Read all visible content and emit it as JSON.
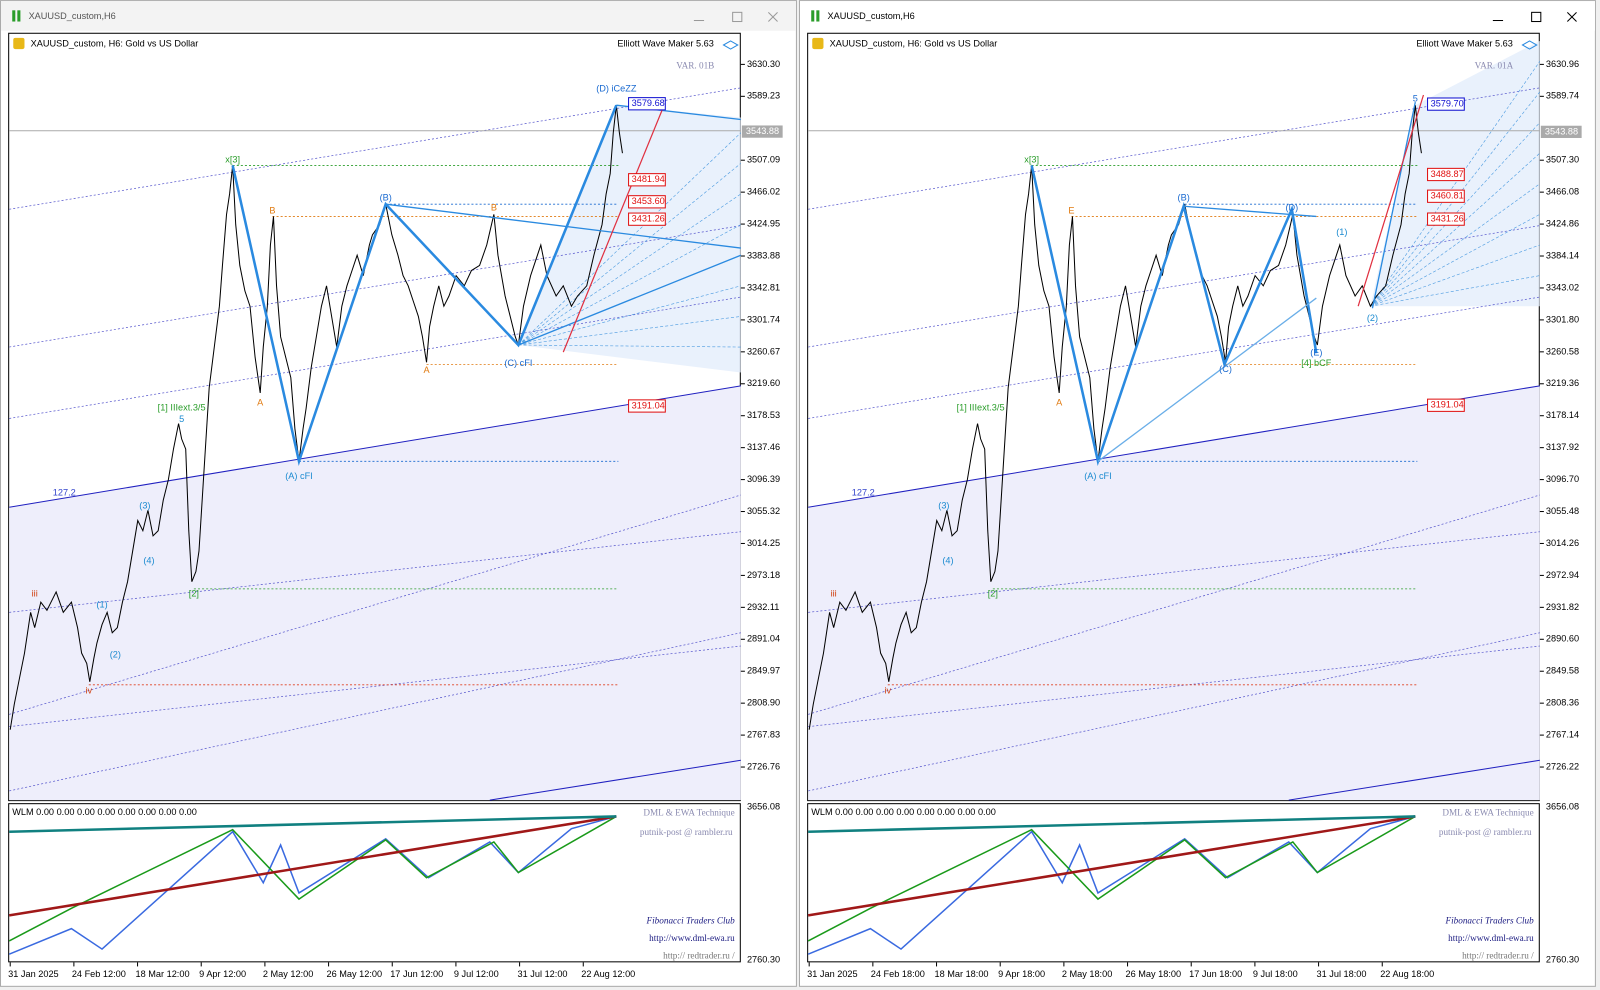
{
  "windows": [
    {
      "title": "XAUUSD_custom,H6",
      "symbol_label": "XAUUSD_custom, H6:  Gold vs US Dollar",
      "indicator": "Elliott Wave Maker 5.63",
      "variant": "VAR. 01B",
      "price_axis": [
        "3630.30",
        "3589.23",
        "3507.09",
        "3466.02",
        "3424.95",
        "3383.88",
        "3342.81",
        "3301.74",
        "3260.67",
        "3219.60",
        "3178.53",
        "3137.46",
        "3096.39",
        "3055.32",
        "3014.25",
        "2973.18",
        "2932.11",
        "2891.04",
        "2849.97",
        "2808.90",
        "2767.83",
        "2726.76"
      ],
      "current_price": "3543.88",
      "price_tags": [
        {
          "label": "3579.68",
          "color": "#1010d0"
        },
        {
          "label": "3481.94",
          "color": "#e01010"
        },
        {
          "label": "3453.60",
          "color": "#e01010"
        },
        {
          "label": "3431.26",
          "color": "#e01010"
        },
        {
          "label": "3191.04",
          "color": "#e01010"
        }
      ],
      "wave_labels": [
        "x[3]",
        "[1] IIIext.3/5",
        "(A) cFI",
        "(B)",
        "(C) cFI",
        "(D) iCeZZ",
        "127.2",
        "iii",
        "iv",
        "[2]",
        "B",
        "A",
        "A",
        "B",
        "(1)",
        "(2)",
        "(3)",
        "(4)",
        "5"
      ],
      "pane_label": "WLM 0.00 0.00 0.00 0.00 0.00 0.00 0.00 0.00",
      "pane_axis": [
        "3656.08",
        "2760.30"
      ],
      "credits": [
        "DML & EWA Technique",
        "putnik-post @ rambler.ru",
        "Fibonacci   Traders   Club",
        "http://www.dml-ewa.ru",
        "http://  redtrader.ru  /"
      ],
      "time_axis": [
        "31 Jan 2025",
        "24 Feb 12:00",
        "18 Mar 12:00",
        "9 Apr 12:00",
        "2 May 12:00",
        "26 May 12:00",
        "17 Jun 12:00",
        "9 Jul 12:00",
        "31 Jul 12:00",
        "22 Aug 12:00"
      ]
    },
    {
      "title": "XAUUSD_custom,H6",
      "symbol_label": "XAUUSD_custom, H6:  Gold vs US Dollar",
      "indicator": "Elliott Wave Maker 5.63",
      "variant": "VAR. 01A",
      "price_axis": [
        "3630.96",
        "3589.74",
        "3507.30",
        "3466.08",
        "3424.86",
        "3384.14",
        "3343.02",
        "3301.80",
        "3260.58",
        "3219.36",
        "3178.14",
        "3137.92",
        "3096.70",
        "3055.48",
        "3014.26",
        "2972.94",
        "2931.82",
        "2890.60",
        "2849.58",
        "2808.36",
        "2767.14",
        "2726.22"
      ],
      "current_price": "3543.88",
      "price_tags": [
        {
          "label": "3579.70",
          "color": "#1010d0"
        },
        {
          "label": "3488.87",
          "color": "#e01010"
        },
        {
          "label": "3460.81",
          "color": "#e01010"
        },
        {
          "label": "3431.26",
          "color": "#e01010"
        },
        {
          "label": "3191.04",
          "color": "#e01010"
        }
      ],
      "wave_labels": [
        "x[3]",
        "[1] IIIext.3/5",
        "(A) cFI",
        "(B)",
        "(D)",
        "(E)",
        "[4] bCF",
        "127.2",
        "iii",
        "iv",
        "[2]",
        "E",
        "A",
        "(C)",
        "(1)",
        "(2)",
        "(3)",
        "(4)",
        "5"
      ],
      "pane_label": "WLM 0.00 0.00 0.00 0.00 0.00 0.00 0.00 0.00",
      "pane_axis": [
        "3656.08",
        "2760.30"
      ],
      "credits": [
        "DML & EWA Technique",
        "putnik-post @ rambler.ru",
        "Fibonacci   Traders   Club",
        "http://www.dml-ewa.ru",
        "http://  redtrader.ru  /"
      ],
      "time_axis": [
        "31 Jan 2025",
        "24 Feb 18:00",
        "18 Mar 18:00",
        "9 Apr 18:00",
        "2 May 18:00",
        "26 May 18:00",
        "17 Jun 18:00",
        "9 Jul 18:00",
        "31 Jul 18:00",
        "22 Aug 18:00"
      ]
    }
  ]
}
